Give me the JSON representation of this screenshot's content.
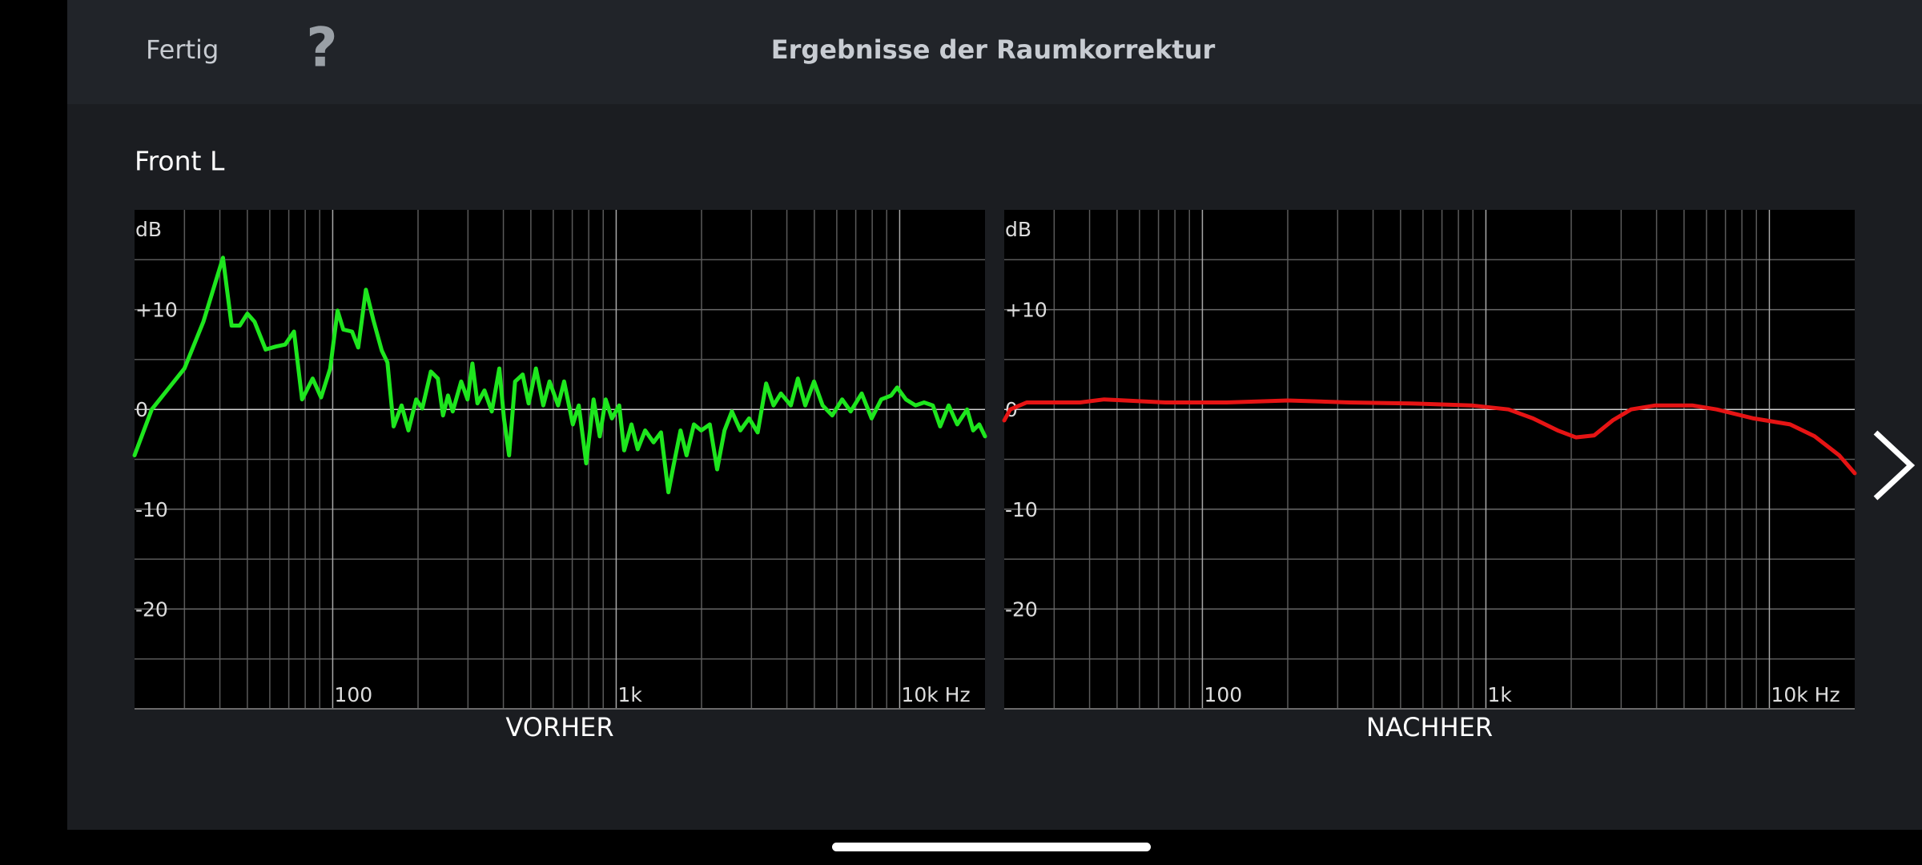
{
  "header": {
    "done": "Fertig",
    "help": "?",
    "title": "Ergebnisse der Raumkorrektur"
  },
  "channel": "Front L",
  "chart_data": [
    {
      "type": "line",
      "title": "VORHER",
      "ylabel": "dB",
      "xscale": "log",
      "xlim": [
        20,
        20000
      ],
      "ylim": [
        -30,
        20
      ],
      "xticks": [
        100,
        {
          "value": 1000,
          "label": "1k"
        },
        {
          "value": 10000,
          "label": "10k Hz"
        }
      ],
      "yticks": [
        {
          "value": 10,
          "label": "+10"
        },
        0,
        -10,
        -20
      ],
      "xminor": [
        30,
        40,
        50,
        60,
        70,
        80,
        90,
        200,
        300,
        400,
        500,
        600,
        700,
        800,
        900,
        2000,
        3000,
        4000,
        5000,
        6000,
        7000,
        8000,
        9000
      ],
      "yminor": [
        15,
        5,
        -5,
        -15,
        -25
      ],
      "grid": true,
      "series": [
        {
          "color": "#1ee61e",
          "x": [
            20,
            23,
            30,
            35,
            41,
            44,
            47,
            50,
            53,
            58,
            63,
            68,
            73,
            78,
            85,
            91,
            98,
            104,
            109,
            117,
            123,
            131,
            139,
            149,
            156,
            164,
            175,
            185,
            197,
            207,
            222,
            235,
            245,
            255,
            265,
            284,
            299,
            311,
            324,
            343,
            364,
            387,
            402,
            419,
            440,
            468,
            491,
            521,
            553,
            582,
            624,
            655,
            703,
            738,
            784,
            832,
            875,
            918,
            966,
            1025,
            1067,
            1132,
            1191,
            1265,
            1355,
            1439,
            1528,
            1589,
            1687,
            1771,
            1880,
            1995,
            2138,
            2270,
            2410,
            2559,
            2742,
            2944,
            3155,
            3381,
            3589,
            3811,
            4130,
            4375,
            4645,
            4989,
            5346,
            5781,
            6266,
            6714,
            7345,
            7962,
            8610,
            9333,
            9796,
            10520,
            11376,
            12190,
            13090,
            13890,
            14890,
            15960,
            17290,
            18160,
            19090,
            20000
          ],
          "values": [
            -4.6,
            0,
            4.1,
            8.8,
            15.2,
            8.4,
            8.4,
            9.6,
            8.8,
            6.0,
            6.3,
            6.5,
            7.8,
            1.0,
            3.1,
            1.2,
            4.1,
            9.9,
            8.0,
            7.8,
            6.2,
            12.0,
            9.0,
            5.9,
            4.7,
            -1.7,
            0.4,
            -2.1,
            1.0,
            0.1,
            3.8,
            3.1,
            -0.6,
            1.4,
            -0.2,
            2.8,
            1.0,
            4.6,
            0.6,
            1.9,
            -0.2,
            4.1,
            -0.9,
            -4.6,
            2.8,
            3.5,
            0.6,
            4.1,
            0.4,
            2.8,
            0.4,
            2.8,
            -1.5,
            0.4,
            -5.4,
            1.0,
            -2.7,
            1.0,
            -0.9,
            0.4,
            -4.1,
            -1.5,
            -4.0,
            -2.1,
            -3.3,
            -2.3,
            -8.3,
            -5.8,
            -2.1,
            -4.6,
            -1.5,
            -2.1,
            -1.5,
            -6.0,
            -2.1,
            -0.2,
            -2.1,
            -0.9,
            -2.3,
            2.6,
            0.4,
            1.6,
            0.4,
            3.1,
            0.4,
            2.8,
            0.4,
            -0.6,
            1.0,
            -0.2,
            1.6,
            -0.9,
            1.0,
            1.4,
            2.2,
            1.0,
            0.4,
            0.7,
            0.4,
            -1.7,
            0.4,
            -1.5,
            0,
            -2.1,
            -1.5,
            -2.7
          ]
        }
      ]
    },
    {
      "type": "line",
      "title": "NACHHER",
      "ylabel": "dB",
      "xscale": "log",
      "xlim": [
        20,
        20000
      ],
      "ylim": [
        -30,
        20
      ],
      "xticks": [
        100,
        {
          "value": 1000,
          "label": "1k"
        },
        {
          "value": 10000,
          "label": "10k Hz"
        }
      ],
      "yticks": [
        {
          "value": 10,
          "label": "+10"
        },
        0,
        -10,
        -20
      ],
      "xminor": [
        30,
        40,
        50,
        60,
        70,
        80,
        90,
        200,
        300,
        400,
        500,
        600,
        700,
        800,
        900,
        2000,
        3000,
        4000,
        5000,
        6000,
        7000,
        8000,
        9000
      ],
      "yminor": [
        15,
        5,
        -5,
        -15,
        -25
      ],
      "grid": true,
      "series": [
        {
          "color": "#e61414",
          "x": [
            20,
            21,
            24,
            37,
            45,
            74,
            122,
            200,
            330,
            542,
            891,
            1202,
            1466,
            1791,
            2077,
            2411,
            2800,
            3251,
            3963,
            5343,
            6517,
            8790,
            11830,
            14450,
            17630,
            20000
          ],
          "values": [
            -1.1,
            0,
            0.7,
            0.7,
            1.0,
            0.7,
            0.7,
            0.9,
            0.7,
            0.6,
            0.4,
            0,
            -0.9,
            -2.1,
            -2.8,
            -2.6,
            -1.1,
            0,
            0.4,
            0.4,
            0,
            -0.9,
            -1.5,
            -2.7,
            -4.6,
            -6.4
          ]
        }
      ]
    }
  ]
}
